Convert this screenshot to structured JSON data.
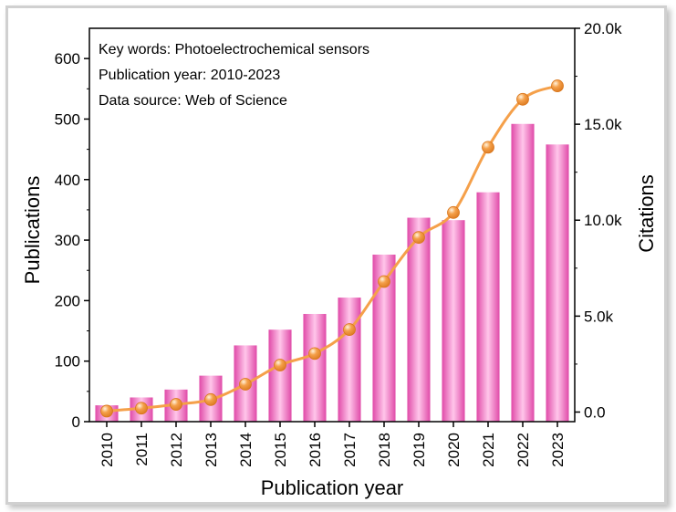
{
  "chart_data": {
    "type": "bar",
    "categories": [
      "2010",
      "2011",
      "2012",
      "2013",
      "2014",
      "2015",
      "2016",
      "2017",
      "2018",
      "2019",
      "2020",
      "2021",
      "2022",
      "2023"
    ],
    "series": [
      {
        "name": "Publications",
        "type": "bar",
        "axis": "left",
        "color": "#f06cc0",
        "values": [
          27,
          40,
          53,
          76,
          126,
          152,
          178,
          205,
          276,
          337,
          333,
          379,
          492,
          458
        ]
      },
      {
        "name": "Citations",
        "type": "line",
        "axis": "right",
        "color": "#f5a04a",
        "values": [
          50,
          200,
          400,
          650,
          1450,
          2450,
          3050,
          4300,
          6800,
          9100,
          10400,
          13800,
          16300,
          17000
        ]
      }
    ],
    "xlabel": "Publication year",
    "ylabel": "Publications",
    "y2label": "Citations",
    "ylim": [
      0,
      650
    ],
    "y2lim": [
      -500,
      20000
    ],
    "yticks": [
      "0",
      "100",
      "200",
      "300",
      "400",
      "500",
      "600"
    ],
    "yticks_values": [
      0,
      100,
      200,
      300,
      400,
      500,
      600
    ],
    "y2ticks": [
      "0.0",
      "5.0k",
      "10.0k",
      "15.0k",
      "20.0k"
    ],
    "y2ticks_values": [
      0,
      5000,
      10000,
      15000,
      20000
    ],
    "annotations": [
      "Key words: Photoelectrochemical sensors",
      "Publication year: 2010-2023",
      "Data source: Web of Science"
    ]
  }
}
